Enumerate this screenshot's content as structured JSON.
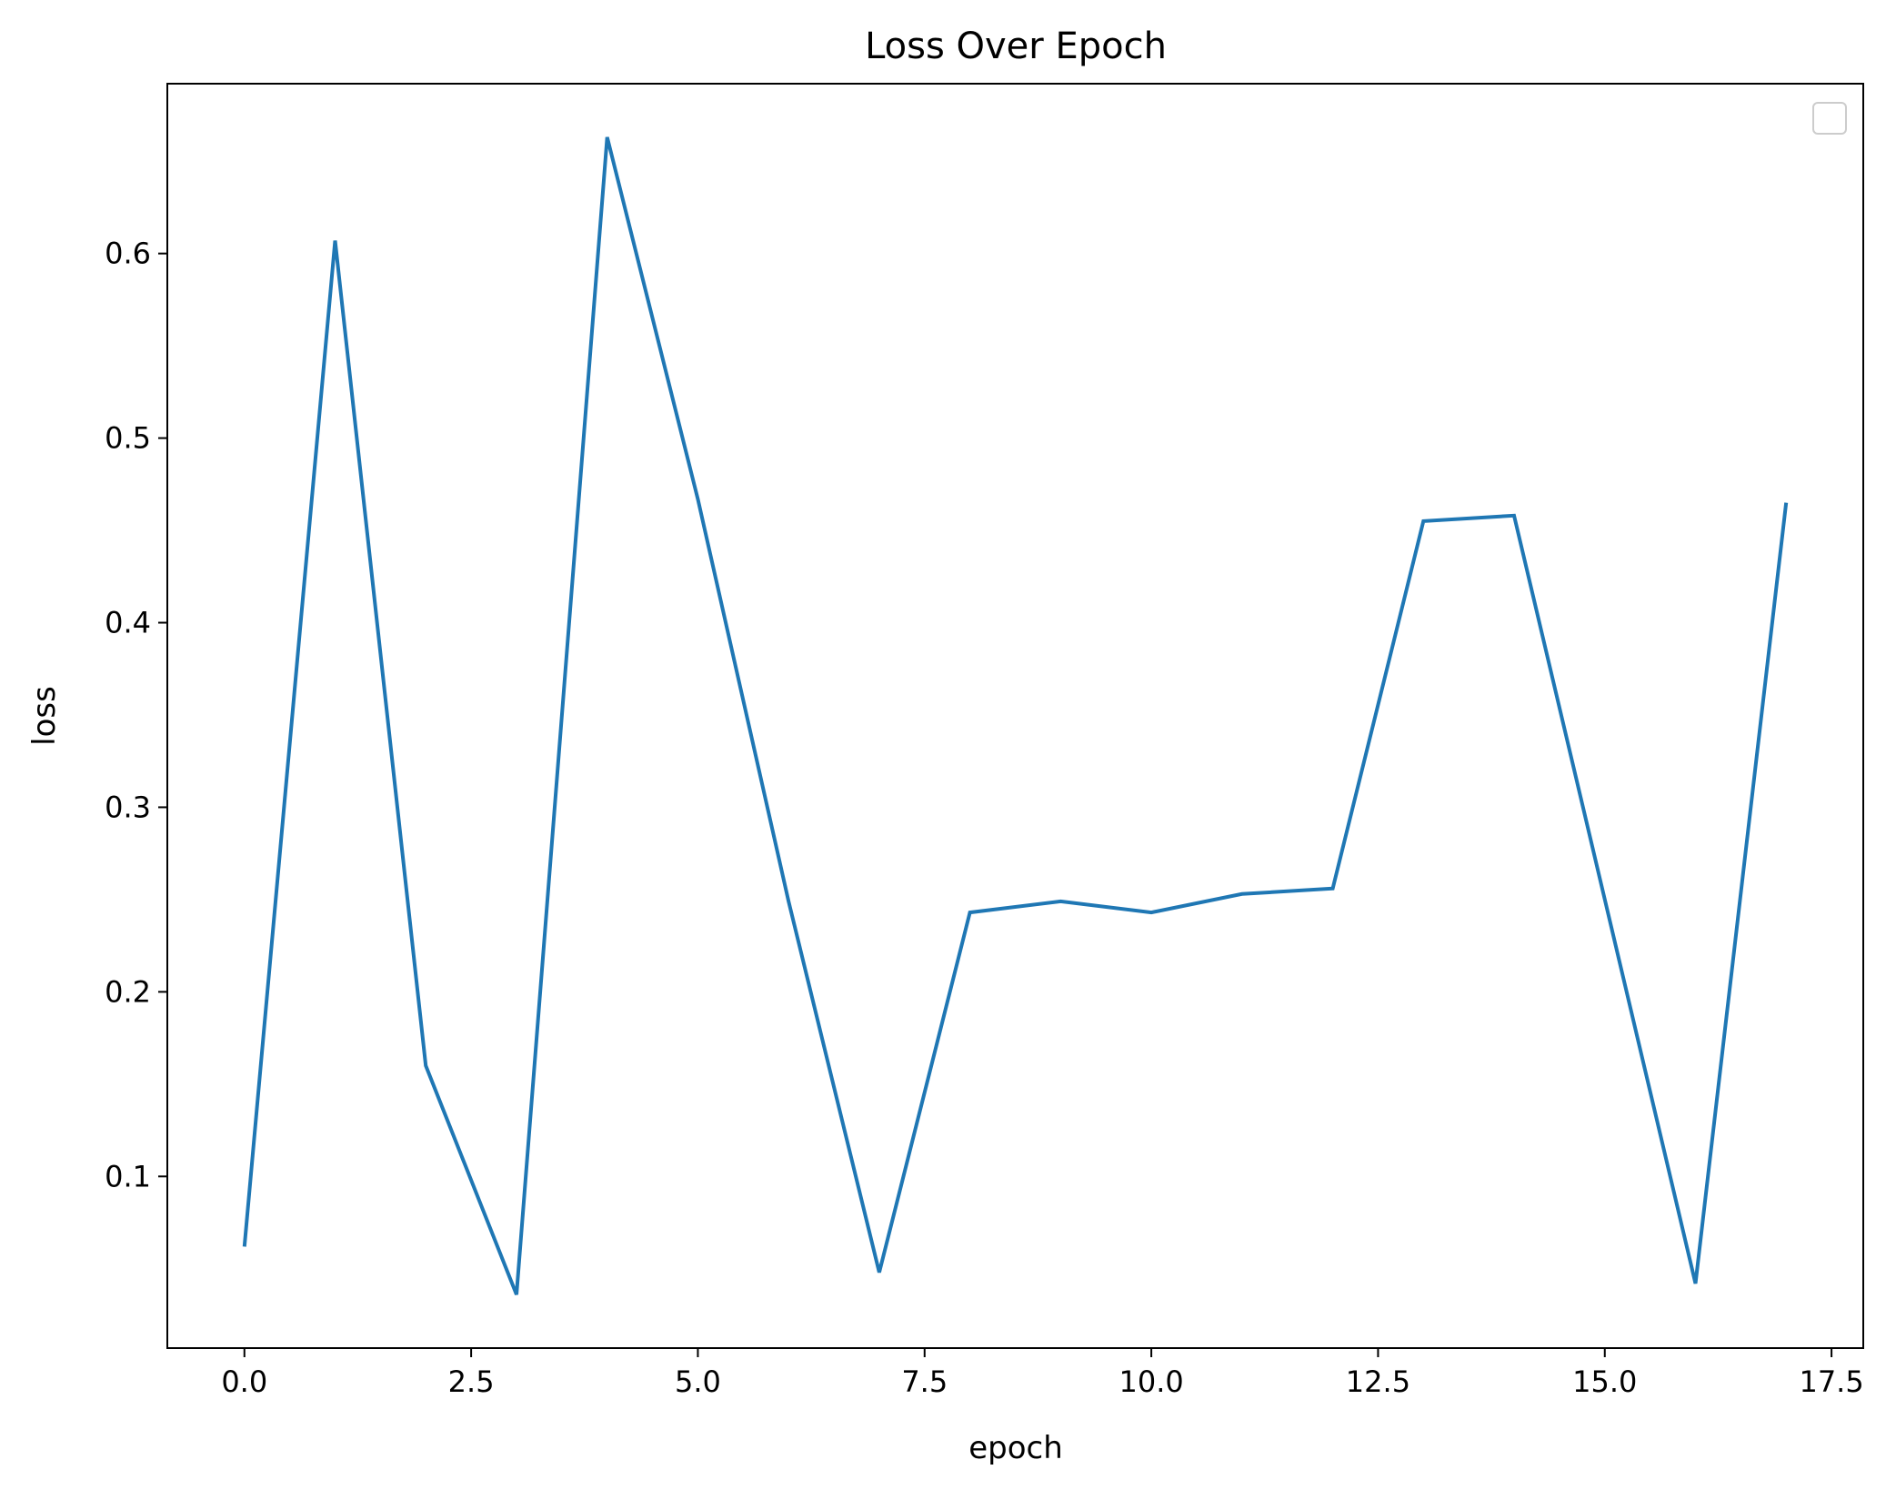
{
  "chart_data": {
    "type": "line",
    "title": "Loss Over Epoch",
    "xlabel": "epoch",
    "ylabel": "loss",
    "xlim": [
      -0.85,
      17.85
    ],
    "ylim": [
      0.007,
      0.692
    ],
    "xticks": [
      0.0,
      2.5,
      5.0,
      7.5,
      10.0,
      12.5,
      15.0,
      17.5
    ],
    "xtick_labels": [
      "0.0",
      "2.5",
      "5.0",
      "7.5",
      "10.0",
      "12.5",
      "15.0",
      "17.5"
    ],
    "yticks": [
      0.1,
      0.2,
      0.3,
      0.4,
      0.5,
      0.6
    ],
    "ytick_labels": [
      "0.1",
      "0.2",
      "0.3",
      "0.4",
      "0.5",
      "0.6"
    ],
    "grid": false,
    "legend": {
      "placement": "top-right",
      "entries": []
    },
    "series": [
      {
        "color": "#1f77b4",
        "x": [
          0,
          1,
          2,
          3,
          4,
          5,
          6,
          7,
          8,
          9,
          10,
          11,
          12,
          13,
          14,
          15,
          16,
          17
        ],
        "y": [
          0.062,
          0.607,
          0.16,
          0.036,
          0.663,
          0.467,
          0.249,
          0.048,
          0.243,
          0.249,
          0.243,
          0.253,
          0.256,
          0.455,
          0.458,
          0.25,
          0.042,
          0.465
        ]
      }
    ]
  }
}
